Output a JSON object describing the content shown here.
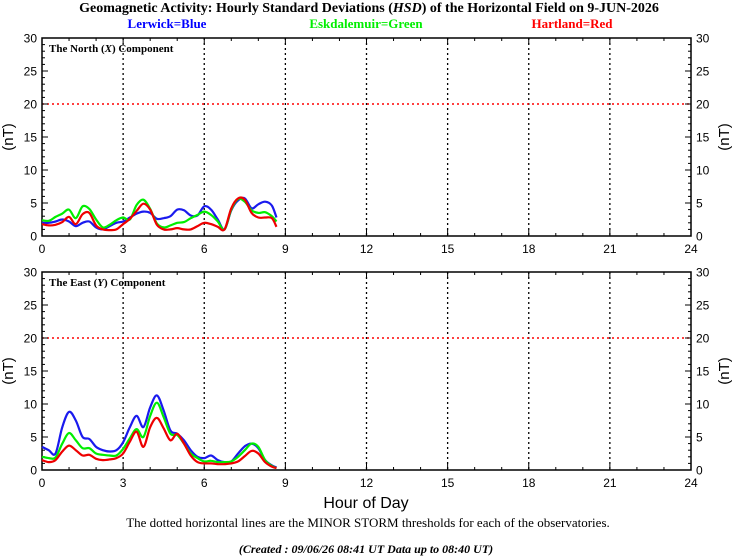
{
  "header": {
    "title_pre": "Geomagnetic Activity: Hourly Standard Deviations (",
    "title_ital": "HSD",
    "title_post": ") of the Horizontal Field on 9-JUN-2026",
    "legend": [
      {
        "label": "Lerwick=Blue",
        "color": "#0000ff"
      },
      {
        "label": "Eskdalemuir=Green",
        "color": "#00ee00"
      },
      {
        "label": "Hartland=Red",
        "color": "#ff0000"
      }
    ]
  },
  "colors": {
    "lerwick": "#1a1aee",
    "eskdalemuir": "#00ee00",
    "hartland": "#ee0000",
    "threshold": "#ff0000"
  },
  "chart_data": [
    {
      "type": "line",
      "panel_pre": "The North (",
      "panel_ital": "X",
      "panel_post": ") Component",
      "ylabel": "(nT)",
      "xlim": [
        0,
        24
      ],
      "ylim": [
        0,
        30
      ],
      "xticks": [
        0,
        3,
        6,
        9,
        12,
        15,
        18,
        21,
        24
      ],
      "yticks": [
        0,
        5,
        10,
        15,
        20,
        25,
        30
      ],
      "threshold": 20,
      "vlines": [
        3,
        6,
        9,
        12,
        15,
        18,
        21
      ],
      "series": [
        {
          "name": "Lerwick",
          "color": "#1a1aee",
          "x": [
            0,
            0.25,
            0.5,
            0.75,
            1,
            1.25,
            1.5,
            1.75,
            2,
            2.25,
            2.5,
            2.75,
            3,
            3.25,
            3.5,
            3.75,
            4,
            4.25,
            4.5,
            4.75,
            5,
            5.25,
            5.5,
            5.75,
            6,
            6.25,
            6.5,
            6.75,
            7,
            7.25,
            7.5,
            7.75,
            8,
            8.25,
            8.5,
            8.67
          ],
          "y": [
            2,
            2,
            2.2,
            2.5,
            2.2,
            1.5,
            2,
            2.2,
            1.3,
            1,
            1.5,
            2,
            2.2,
            2.8,
            3.4,
            3.7,
            3.5,
            2.6,
            2.7,
            3,
            4,
            3.9,
            3.1,
            3.1,
            4.5,
            4,
            2.5,
            1,
            3.9,
            5.4,
            5.7,
            4.2,
            4.8,
            5.2,
            4.6,
            2.8
          ]
        },
        {
          "name": "Eskdalemuir",
          "color": "#00ee00",
          "x": [
            0,
            0.25,
            0.5,
            0.75,
            1,
            1.25,
            1.5,
            1.75,
            2,
            2.25,
            2.5,
            2.75,
            3,
            3.25,
            3.5,
            3.75,
            4,
            4.25,
            4.5,
            4.75,
            5,
            5.25,
            5.5,
            5.75,
            6,
            6.25,
            6.5,
            6.75,
            7,
            7.25,
            7.5,
            7.75,
            8,
            8.25,
            8.5,
            8.67
          ],
          "y": [
            2.4,
            2.3,
            2.9,
            3.4,
            4,
            2.7,
            4.5,
            4.1,
            2.5,
            1.3,
            1.7,
            2.4,
            2.8,
            2.5,
            4.7,
            5.5,
            4.1,
            1.9,
            1.3,
            1.6,
            2,
            2.1,
            2.7,
            3.2,
            3.7,
            3.2,
            2.2,
            1,
            4,
            5.6,
            5.2,
            3.9,
            3.5,
            3.6,
            3,
            2.2
          ]
        },
        {
          "name": "Hartland",
          "color": "#ee0000",
          "x": [
            0,
            0.25,
            0.5,
            0.75,
            1,
            1.25,
            1.5,
            1.75,
            2,
            2.25,
            2.5,
            2.75,
            3,
            3.25,
            3.5,
            3.75,
            4,
            4.25,
            4.5,
            4.75,
            5,
            5.25,
            5.5,
            5.75,
            6,
            6.25,
            6.5,
            6.75,
            7,
            7.25,
            7.5,
            7.75,
            8,
            8.25,
            8.5,
            8.67
          ],
          "y": [
            1.8,
            1.6,
            1.7,
            2.1,
            2.9,
            1.8,
            3.3,
            3.5,
            1.6,
            1,
            0.9,
            1,
            1.8,
            2.6,
            3.8,
            4.9,
            4,
            1.7,
            1,
            1,
            1.2,
            1,
            1,
            1.5,
            2,
            1.8,
            1.4,
            1,
            4.2,
            5.7,
            5.5,
            3.5,
            2.8,
            2.8,
            2.7,
            1.4
          ]
        }
      ]
    },
    {
      "type": "line",
      "panel_pre": "The East (",
      "panel_ital": "Y",
      "panel_post": ") Component",
      "ylabel": "(nT)",
      "xlim": [
        0,
        24
      ],
      "ylim": [
        0,
        30
      ],
      "xticks": [
        0,
        3,
        6,
        9,
        12,
        15,
        18,
        21,
        24
      ],
      "yticks": [
        0,
        5,
        10,
        15,
        20,
        25,
        30
      ],
      "threshold": 20,
      "vlines": [
        3,
        6,
        9,
        12,
        15,
        18,
        21
      ],
      "series": [
        {
          "name": "Lerwick",
          "color": "#1a1aee",
          "x": [
            0,
            0.25,
            0.5,
            0.75,
            1,
            1.25,
            1.5,
            1.75,
            2,
            2.25,
            2.5,
            2.75,
            3,
            3.25,
            3.5,
            3.75,
            4,
            4.25,
            4.5,
            4.75,
            5,
            5.25,
            5.5,
            5.75,
            6,
            6.25,
            6.5,
            6.75,
            7,
            7.25,
            7.5,
            7.75,
            8,
            8.25,
            8.5,
            8.67
          ],
          "y": [
            3.5,
            3,
            2.5,
            6.5,
            8.8,
            7.5,
            5,
            4.7,
            3.5,
            3,
            2.8,
            3,
            4.2,
            6.5,
            8.2,
            6.5,
            9.5,
            11.3,
            9,
            6,
            5.5,
            4.5,
            3,
            2,
            1.8,
            2.2,
            1.5,
            1.2,
            1.3,
            2.5,
            3.6,
            4,
            3.3,
            1.5,
            0.7,
            0.4
          ]
        },
        {
          "name": "Eskdalemuir",
          "color": "#00ee00",
          "x": [
            0,
            0.25,
            0.5,
            0.75,
            1,
            1.25,
            1.5,
            1.75,
            2,
            2.25,
            2.5,
            2.75,
            3,
            3.25,
            3.5,
            3.75,
            4,
            4.25,
            4.5,
            4.75,
            5,
            5.25,
            5.5,
            5.75,
            6,
            6.25,
            6.5,
            6.75,
            7,
            7.25,
            7.5,
            7.75,
            8,
            8.25,
            8.5,
            8.67
          ],
          "y": [
            2,
            1.8,
            1.9,
            4,
            5.6,
            4.5,
            3.3,
            3.3,
            2.5,
            2.3,
            2.2,
            2.2,
            3.2,
            4.8,
            6.2,
            5,
            8.2,
            10.2,
            8,
            5.5,
            5.3,
            4,
            2.5,
            1.8,
            1.3,
            1.4,
            1.2,
            1.2,
            1.3,
            2,
            3,
            4,
            3.5,
            1.5,
            0.6,
            0.3
          ]
        },
        {
          "name": "Hartland",
          "color": "#ee0000",
          "x": [
            0,
            0.25,
            0.5,
            0.75,
            1,
            1.25,
            1.5,
            1.75,
            2,
            2.25,
            2.5,
            2.75,
            3,
            3.25,
            3.5,
            3.75,
            4,
            4.25,
            4.5,
            4.75,
            5,
            5.25,
            5.5,
            5.75,
            6,
            6.25,
            6.5,
            6.75,
            7,
            7.25,
            7.5,
            7.75,
            8,
            8.25,
            8.5,
            8.67
          ],
          "y": [
            1.5,
            1.2,
            1.5,
            2.8,
            3.7,
            3,
            2.2,
            2.3,
            1.7,
            1.5,
            1.6,
            1.8,
            2.5,
            4.3,
            5.8,
            3.5,
            6.5,
            7.9,
            6.3,
            4.5,
            5.5,
            4,
            2.2,
            1.2,
            1,
            1,
            0.9,
            0.9,
            1,
            1.3,
            2.1,
            2.9,
            2.5,
            1.2,
            0.5,
            0.3
          ]
        }
      ]
    }
  ],
  "xaxis_title": "Hour of Day",
  "footer": {
    "note": "The dotted horizontal lines are the MINOR STORM thresholds for each of the observatories.",
    "created": "(Created : 09/06/26 08:41 UT  Data up to 08:40 UT)"
  }
}
